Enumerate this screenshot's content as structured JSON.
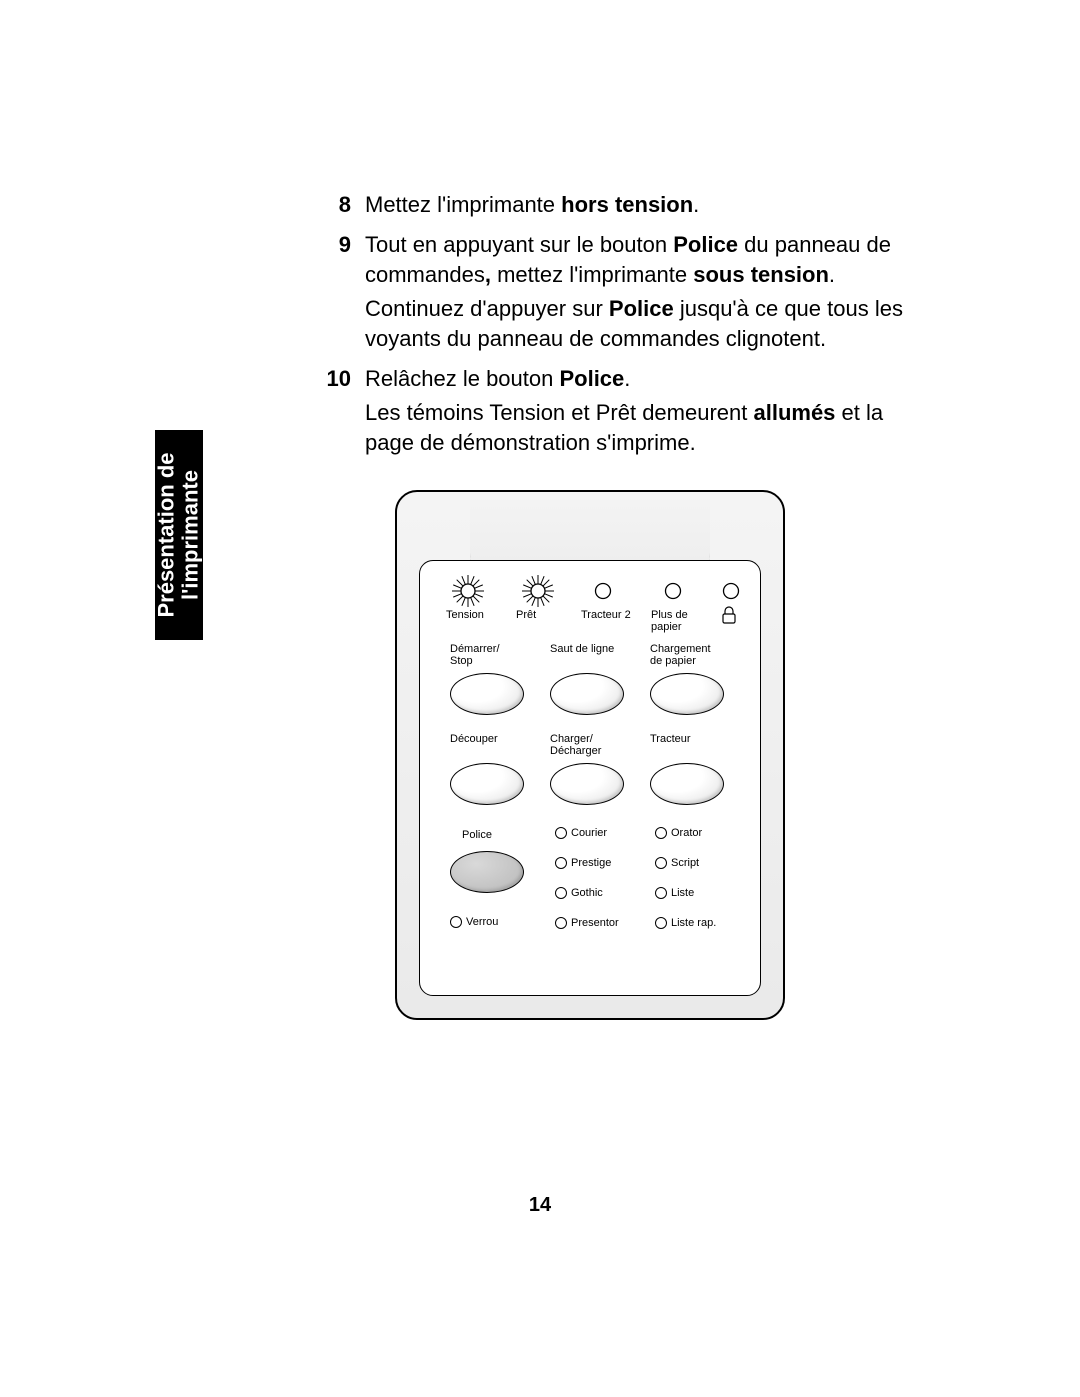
{
  "page_number": "14",
  "side_tab": {
    "line1": "Présentation de",
    "line2": "l'imprimante"
  },
  "steps": [
    {
      "num": "8",
      "paragraphs": [
        {
          "segments": [
            {
              "t": "Mettez l'imprimante "
            },
            {
              "t": "hors tension",
              "bold": true
            },
            {
              "t": "."
            }
          ]
        }
      ]
    },
    {
      "num": "9",
      "paragraphs": [
        {
          "segments": [
            {
              "t": "Tout en appuyant sur le bouton "
            },
            {
              "t": "Police",
              "bold": true
            },
            {
              "t": " du panneau de commandes"
            },
            {
              "t": ",",
              "bold": true
            },
            {
              "t": " mettez l'imprimante "
            },
            {
              "t": "sous tension",
              "bold": true
            },
            {
              "t": "."
            }
          ]
        },
        {
          "segments": [
            {
              "t": "Continuez d'appuyer sur "
            },
            {
              "t": "Police",
              "bold": true
            },
            {
              "t": " jusqu'à ce que tous les voyants du panneau de commandes clignotent."
            }
          ]
        }
      ]
    },
    {
      "num": "10",
      "paragraphs": [
        {
          "segments": [
            {
              "t": "Relâchez le bouton "
            },
            {
              "t": "Police",
              "bold": true
            },
            {
              "t": "."
            }
          ]
        },
        {
          "segments": [
            {
              "t": "Les témoins Tension et Prêt demeurent "
            },
            {
              "t": "allumés",
              "bold": true
            },
            {
              "t": " et la page de démonstration s'imprime."
            }
          ]
        }
      ]
    }
  ],
  "panel": {
    "led_row": [
      {
        "label": "Tension",
        "star": true
      },
      {
        "label": "Prêt",
        "star": true
      },
      {
        "label": "Tracteur 2",
        "star": false
      },
      {
        "label": "Plus de\npapier",
        "star": false
      }
    ],
    "lock_icon": true,
    "button_row1": [
      {
        "label": "Démarrer/\nStop"
      },
      {
        "label": "Saut de ligne"
      },
      {
        "label": "Chargement\nde papier"
      }
    ],
    "button_row2": [
      {
        "label": "Découper"
      },
      {
        "label": "Charger/\nDécharger"
      },
      {
        "label": "Tracteur"
      }
    ],
    "police_label": "Police",
    "verrou_label": "Verrou",
    "font_list_col1": [
      "Courier",
      "Prestige",
      "Gothic",
      "Presentor"
    ],
    "font_list_col2": [
      "Orator",
      "Script",
      "Liste",
      "Liste rap."
    ]
  },
  "colors": {
    "text": "#000000",
    "page_bg": "#ffffff",
    "tab_bg": "#000000",
    "tab_text": "#ffffff",
    "panel_border": "#000000",
    "panel_bg_top": "#f4f4f4",
    "panel_bg_bottom": "#eaeaea"
  },
  "typography": {
    "body_fontsize_pt": 16,
    "body_lineheight_pt": 22,
    "panel_label_fontsize_pt": 8
  }
}
